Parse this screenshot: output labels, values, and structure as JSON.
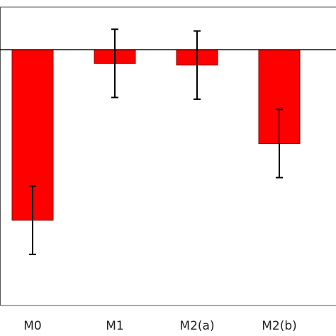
{
  "chart_data": {
    "type": "bar",
    "categories": [
      "M0",
      "M1",
      "M2(a)",
      "M2(b)"
    ],
    "values": [
      -1.0,
      -0.08,
      -0.09,
      -0.55
    ],
    "error_bars": [
      0.2,
      0.2,
      0.2,
      0.2
    ],
    "ylim": [
      -1.5,
      0.25
    ],
    "title": "",
    "xlabel": "",
    "ylabel": "",
    "grid": false,
    "colors": {
      "bar_fill": "#ff0000",
      "bar_edge": "#8b0000",
      "axis": "#000000",
      "error_bar": "#000000"
    }
  }
}
